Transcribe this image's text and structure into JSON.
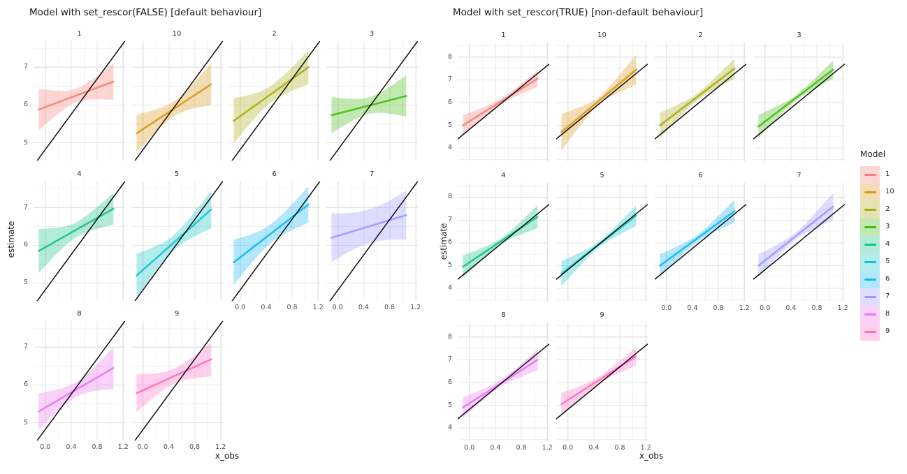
{
  "page": {
    "background": "#ffffff"
  },
  "chart_data": [
    {
      "type": "area",
      "title": "Model with set_rescor(FALSE) [default behaviour]",
      "xlabel": "x_obs",
      "ylabel": "estimate",
      "facet_variable": "Model",
      "grid": "on",
      "ncol": 4,
      "xlim": [
        -0.18,
        1.23
      ],
      "ylim": [
        4.53,
        7.69
      ],
      "x_ticks": [
        0.0,
        0.4,
        0.8,
        1.2
      ],
      "x_tick_labels": [
        "0.0",
        "0.4",
        "0.8",
        "1.2"
      ],
      "y_ticks": [
        5,
        6,
        7
      ],
      "y_tick_labels": [
        "5",
        "6",
        "7"
      ],
      "reference_line": {
        "intercept": 4.82,
        "slope": 2.34,
        "color": "#000000"
      },
      "fit_x_range": [
        -0.1,
        1.05
      ],
      "facets": [
        {
          "label": "1",
          "color": "#F8766D",
          "fit_y": [
            5.88,
            6.62
          ],
          "ribbon_halfwidth": [
            0.55,
            0.18,
            0.48
          ]
        },
        {
          "label": "10",
          "color": "#D89000",
          "fit_y": [
            5.25,
            6.55
          ],
          "ribbon_halfwidth": [
            0.5,
            0.2,
            0.55
          ]
        },
        {
          "label": "2",
          "color": "#A3A500",
          "fit_y": [
            5.58,
            7.0
          ],
          "ribbon_halfwidth": [
            0.6,
            0.22,
            0.45
          ]
        },
        {
          "label": "3",
          "color": "#39B600",
          "fit_y": [
            5.73,
            6.24
          ],
          "ribbon_halfwidth": [
            0.48,
            0.22,
            0.55
          ]
        },
        {
          "label": "4",
          "color": "#00BF7D",
          "fit_y": [
            5.85,
            6.97
          ],
          "ribbon_halfwidth": [
            0.58,
            0.2,
            0.42
          ]
        },
        {
          "label": "5",
          "color": "#00BFC4",
          "fit_y": [
            5.2,
            6.95
          ],
          "ribbon_halfwidth": [
            0.58,
            0.2,
            0.5
          ]
        },
        {
          "label": "6",
          "color": "#00B0F6",
          "fit_y": [
            5.55,
            7.08
          ],
          "ribbon_halfwidth": [
            0.6,
            0.25,
            0.48
          ]
        },
        {
          "label": "7",
          "color": "#9590FF",
          "fit_y": [
            6.2,
            6.8
          ],
          "ribbon_halfwidth": [
            0.65,
            0.45,
            0.65
          ]
        },
        {
          "label": "8",
          "color": "#E76BF3",
          "fit_y": [
            5.3,
            6.45
          ],
          "ribbon_halfwidth": [
            0.48,
            0.2,
            0.55
          ]
        },
        {
          "label": "9",
          "color": "#FF62BC",
          "fit_y": [
            5.78,
            6.68
          ],
          "ribbon_halfwidth": [
            0.5,
            0.2,
            0.45
          ]
        }
      ]
    },
    {
      "type": "area",
      "title": "Model with set_rescor(TRUE) [non-default behaviour]",
      "xlabel": "x_obs",
      "ylabel": "estimate",
      "facet_variable": "Model",
      "grid": "on",
      "ncol": 4,
      "xlim": [
        -0.18,
        1.23
      ],
      "ylim": [
        3.42,
        8.64
      ],
      "x_ticks": [
        0.0,
        0.4,
        0.8,
        1.2
      ],
      "x_tick_labels": [
        "0.0",
        "0.4",
        "0.8",
        "1.2"
      ],
      "y_ticks": [
        4,
        5,
        6,
        7,
        8
      ],
      "y_tick_labels": [
        "4",
        "5",
        "6",
        "7",
        "8"
      ],
      "reference_line": {
        "intercept": 4.82,
        "slope": 2.34,
        "color": "#000000"
      },
      "fit_x_range": [
        -0.1,
        1.05
      ],
      "facets": [
        {
          "label": "1",
          "color": "#F8766D",
          "fit_y": [
            5.0,
            7.05
          ],
          "ribbon_halfwidth": [
            0.45,
            0.12,
            0.35
          ]
        },
        {
          "label": "10",
          "color": "#D89000",
          "fit_y": [
            4.7,
            7.45
          ],
          "ribbon_halfwidth": [
            0.8,
            0.15,
            0.65
          ]
        },
        {
          "label": "2",
          "color": "#A3A500",
          "fit_y": [
            5.0,
            7.5
          ],
          "ribbon_halfwidth": [
            0.55,
            0.15,
            0.45
          ]
        },
        {
          "label": "3",
          "color": "#39B600",
          "fit_y": [
            4.95,
            7.45
          ],
          "ribbon_halfwidth": [
            0.5,
            0.12,
            0.4
          ]
        },
        {
          "label": "4",
          "color": "#00BF7D",
          "fit_y": [
            4.95,
            7.15
          ],
          "ribbon_halfwidth": [
            0.5,
            0.12,
            0.5
          ]
        },
        {
          "label": "5",
          "color": "#00BFC4",
          "fit_y": [
            4.65,
            7.2
          ],
          "ribbon_halfwidth": [
            0.55,
            0.12,
            0.45
          ]
        },
        {
          "label": "6",
          "color": "#00B0F6",
          "fit_y": [
            5.0,
            7.4
          ],
          "ribbon_halfwidth": [
            0.5,
            0.15,
            0.5
          ]
        },
        {
          "label": "7",
          "color": "#9590FF",
          "fit_y": [
            5.0,
            7.6
          ],
          "ribbon_halfwidth": [
            0.5,
            0.15,
            0.6
          ]
        },
        {
          "label": "8",
          "color": "#E76BF3",
          "fit_y": [
            4.9,
            7.0
          ],
          "ribbon_halfwidth": [
            0.45,
            0.15,
            0.45
          ]
        },
        {
          "label": "9",
          "color": "#FF62BC",
          "fit_y": [
            5.05,
            7.15
          ],
          "ribbon_halfwidth": [
            0.5,
            0.15,
            0.4
          ]
        }
      ]
    }
  ],
  "legend": {
    "title": "Model",
    "entries": [
      {
        "label": "1",
        "color": "#F8766D"
      },
      {
        "label": "10",
        "color": "#D89000"
      },
      {
        "label": "2",
        "color": "#A3A500"
      },
      {
        "label": "3",
        "color": "#39B600"
      },
      {
        "label": "4",
        "color": "#00BF7D"
      },
      {
        "label": "5",
        "color": "#00BFC4"
      },
      {
        "label": "6",
        "color": "#00B0F6"
      },
      {
        "label": "7",
        "color": "#9590FF"
      },
      {
        "label": "8",
        "color": "#E76BF3"
      },
      {
        "label": "9",
        "color": "#FF62BC"
      }
    ]
  },
  "style": {
    "ribbon_opacity": 0.3,
    "fit_line_opacity": 0.8,
    "grid_major_color": "#e4e4e4",
    "grid_minor_color": "#f0f0f0"
  }
}
